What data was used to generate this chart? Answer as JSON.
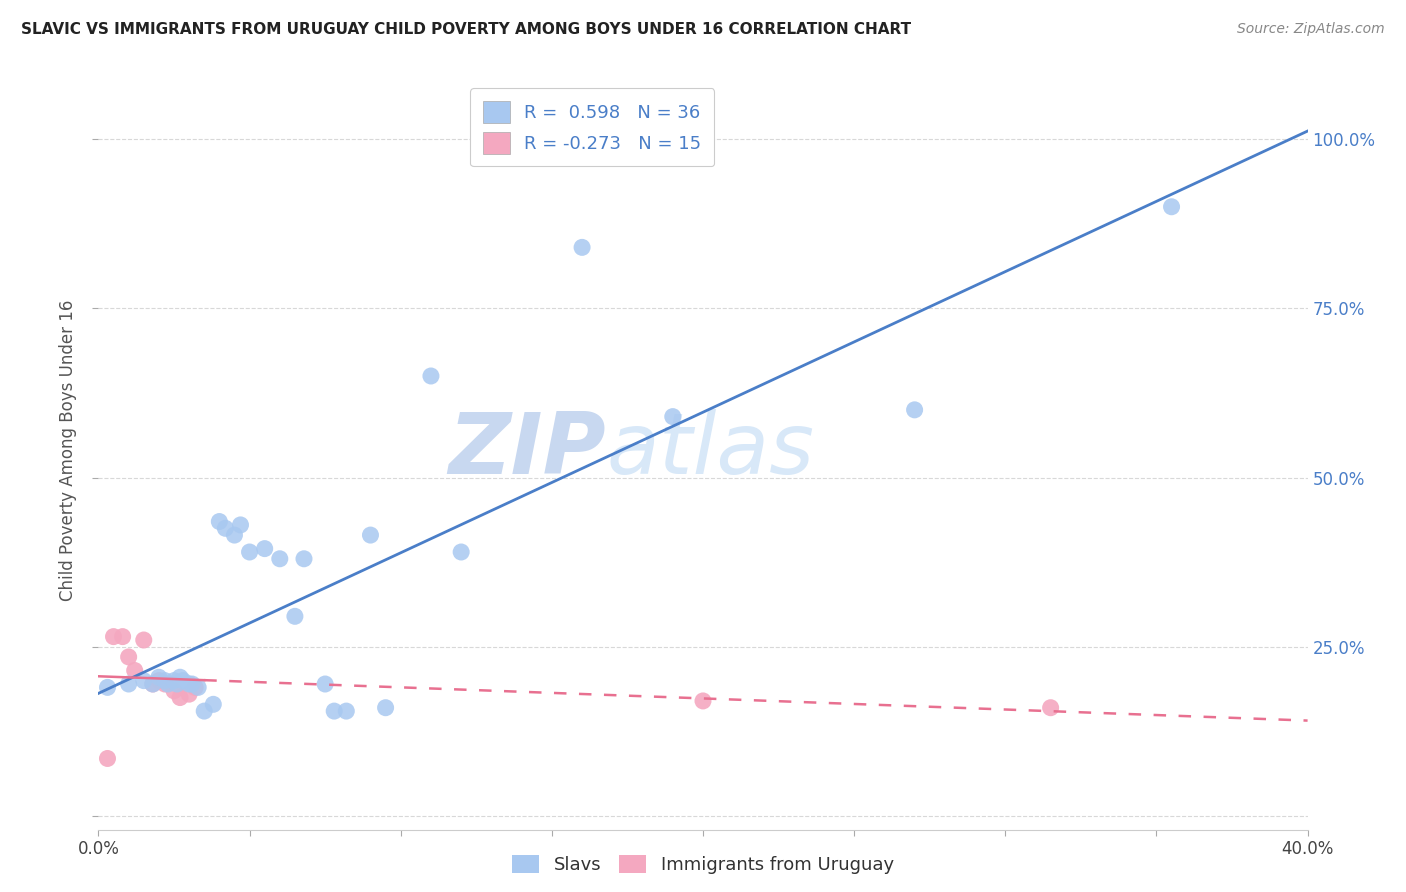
{
  "title": "SLAVIC VS IMMIGRANTS FROM URUGUAY CHILD POVERTY AMONG BOYS UNDER 16 CORRELATION CHART",
  "source": "Source: ZipAtlas.com",
  "ylabel": "Child Poverty Among Boys Under 16",
  "xlim": [
    0.0,
    0.4
  ],
  "ylim": [
    -0.02,
    1.1
  ],
  "xticks": [
    0.0,
    0.05,
    0.1,
    0.15,
    0.2,
    0.25,
    0.3,
    0.35,
    0.4
  ],
  "xtick_labels_show": [
    "0.0%",
    "",
    "",
    "",
    "",
    "",
    "",
    "",
    "40.0%"
  ],
  "yticks": [
    0.0,
    0.25,
    0.5,
    0.75,
    1.0
  ],
  "ytick_labels": [
    "",
    "25.0%",
    "50.0%",
    "75.0%",
    "100.0%"
  ],
  "slavs_color": "#a8c8f0",
  "uruguay_color": "#f4a8c0",
  "slavs_line_color": "#4a7ec8",
  "uruguay_line_color": "#e87090",
  "legend_slavs_R": "0.598",
  "legend_slavs_N": "36",
  "legend_uruguay_R": "-0.273",
  "legend_uruguay_N": "15",
  "watermark_zip": "ZIP",
  "watermark_atlas": "atlas",
  "watermark_color": "#c8d8f0",
  "slavs_x": [
    0.003,
    0.01,
    0.015,
    0.018,
    0.02,
    0.022,
    0.023,
    0.025,
    0.026,
    0.027,
    0.028,
    0.03,
    0.031,
    0.033,
    0.035,
    0.038,
    0.04,
    0.042,
    0.045,
    0.047,
    0.05,
    0.055,
    0.06,
    0.065,
    0.068,
    0.075,
    0.078,
    0.082,
    0.09,
    0.095,
    0.11,
    0.12,
    0.16,
    0.19,
    0.27,
    0.355
  ],
  "slavs_y": [
    0.19,
    0.195,
    0.2,
    0.195,
    0.205,
    0.2,
    0.195,
    0.2,
    0.195,
    0.205,
    0.2,
    0.195,
    0.195,
    0.19,
    0.155,
    0.165,
    0.435,
    0.425,
    0.415,
    0.43,
    0.39,
    0.395,
    0.38,
    0.295,
    0.38,
    0.195,
    0.155,
    0.155,
    0.415,
    0.16,
    0.65,
    0.39,
    0.84,
    0.59,
    0.6,
    0.9
  ],
  "uruguay_x": [
    0.003,
    0.005,
    0.008,
    0.01,
    0.012,
    0.015,
    0.018,
    0.02,
    0.022,
    0.025,
    0.027,
    0.03,
    0.032,
    0.2,
    0.315
  ],
  "uruguay_y": [
    0.085,
    0.265,
    0.265,
    0.235,
    0.215,
    0.26,
    0.195,
    0.2,
    0.195,
    0.185,
    0.175,
    0.18,
    0.19,
    0.17,
    0.16
  ],
  "background_color": "#ffffff",
  "grid_color": "#d8d8d8"
}
